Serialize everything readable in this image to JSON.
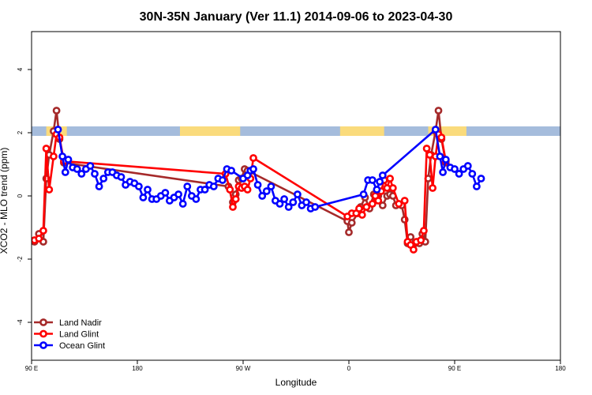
{
  "chart_data": {
    "type": "line",
    "title": "30N-35N January (Ver 11.1)   2014-09-06 to 2023-04-30",
    "xlabel": "Longitude",
    "ylabel": "XCO2 - MLO trend (ppm)",
    "xlim": [
      -90,
      270
    ],
    "ylim": [
      -5.2,
      5.2
    ],
    "x_ticks": [
      {
        "value": -90,
        "label": "90 E"
      },
      {
        "value": -18,
        "label": "180"
      },
      {
        "value": 54,
        "label": "90 W"
      },
      {
        "value": 126,
        "label": "0"
      },
      {
        "value": 198,
        "label": "90 E"
      },
      {
        "value": 270,
        "label": "180"
      }
    ],
    "y_ticks": [
      {
        "value": -4,
        "label": "-4"
      },
      {
        "value": -2,
        "label": "-2"
      },
      {
        "value": 0,
        "label": "0"
      },
      {
        "value": 2,
        "label": "2"
      },
      {
        "value": 4,
        "label": "4"
      }
    ],
    "grid": false,
    "legend_position": "bottom-left",
    "surface_band": {
      "y_range": [
        1.9,
        2.2
      ],
      "land_color": "#fadb7c",
      "ocean_color": "#a5bcdc",
      "land_segments": [
        [
          -80,
          -66
        ],
        [
          11,
          52
        ],
        [
          120,
          150
        ],
        [
          180,
          206
        ]
      ]
    },
    "series": [
      {
        "name": "Land Nadir",
        "color": "#a52a2a",
        "points": [
          [
            -88,
            -1.45
          ],
          [
            -85,
            -1.2
          ],
          [
            -82,
            -1.45
          ],
          [
            -80,
            0.55
          ],
          [
            -78,
            1.3
          ],
          [
            -75,
            2.05
          ],
          [
            -73,
            2.7
          ],
          [
            -71,
            1.8
          ],
          [
            -68,
            1.05
          ],
          [
            44,
            0.3
          ],
          [
            47,
            -0.2
          ],
          [
            49,
            0.05
          ],
          [
            51,
            0.5
          ],
          [
            53,
            0.55
          ],
          [
            55,
            0.85
          ],
          [
            57,
            0.8
          ],
          [
            125,
            -0.8
          ],
          [
            126,
            -1.15
          ],
          [
            128,
            -0.85
          ],
          [
            132,
            -0.55
          ],
          [
            134,
            -0.35
          ],
          [
            137,
            -0.05
          ],
          [
            140,
            -0.4
          ],
          [
            143,
            0.05
          ],
          [
            146,
            0.0
          ],
          [
            149,
            -0.3
          ],
          [
            152,
            0.0
          ],
          [
            154,
            0.05
          ],
          [
            156,
            0.0
          ],
          [
            158,
            -0.3
          ],
          [
            162,
            -0.3
          ],
          [
            164,
            -0.75
          ],
          [
            166,
            -1.5
          ],
          [
            168,
            -1.3
          ],
          [
            171,
            -1.5
          ],
          [
            174,
            -1.5
          ],
          [
            176,
            -1.2
          ],
          [
            178,
            -1.45
          ],
          [
            180,
            0.55
          ],
          [
            182,
            1.3
          ],
          [
            185,
            2.05
          ],
          [
            187,
            2.7
          ],
          [
            189,
            1.8
          ],
          [
            192,
            1.05
          ]
        ]
      },
      {
        "name": "Land Glint",
        "color": "#ff0000",
        "points": [
          [
            -88,
            -1.4
          ],
          [
            -85,
            -1.35
          ],
          [
            -82,
            -1.1
          ],
          [
            -80,
            1.5
          ],
          [
            -78,
            0.2
          ],
          [
            -75,
            1.25
          ],
          [
            -73,
            1.95
          ],
          [
            -71,
            1.85
          ],
          [
            -68,
            1.1
          ],
          [
            42,
            0.7
          ],
          [
            45,
            0.2
          ],
          [
            47,
            -0.35
          ],
          [
            49,
            -0.1
          ],
          [
            51,
            0.3
          ],
          [
            53,
            0.25
          ],
          [
            55,
            0.3
          ],
          [
            57,
            0.2
          ],
          [
            59,
            0.55
          ],
          [
            61,
            1.2
          ],
          [
            125,
            -0.65
          ],
          [
            128,
            -0.55
          ],
          [
            131,
            -0.55
          ],
          [
            133,
            -0.4
          ],
          [
            135,
            -0.6
          ],
          [
            138,
            -0.35
          ],
          [
            142,
            -0.25
          ],
          [
            144,
            0.0
          ],
          [
            146,
            -0.15
          ],
          [
            148,
            0.15
          ],
          [
            150,
            0.5
          ],
          [
            152,
            0.25
          ],
          [
            154,
            0.55
          ],
          [
            156,
            0.25
          ],
          [
            160,
            -0.25
          ],
          [
            164,
            -0.15
          ],
          [
            166,
            -1.45
          ],
          [
            168,
            -1.55
          ],
          [
            170,
            -1.7
          ],
          [
            172,
            -1.45
          ],
          [
            175,
            -1.4
          ],
          [
            177,
            -1.1
          ],
          [
            179,
            1.5
          ],
          [
            181,
            1.3
          ],
          [
            183,
            0.25
          ],
          [
            185,
            1.25
          ],
          [
            187,
            1.95
          ],
          [
            189,
            1.85
          ],
          [
            192,
            1.1
          ]
        ]
      },
      {
        "name": "Ocean Glint",
        "color": "#0000ff",
        "points": [
          [
            -72,
            2.1
          ],
          [
            -69,
            1.25
          ],
          [
            -67,
            0.75
          ],
          [
            -65,
            1.15
          ],
          [
            -62,
            0.9
          ],
          [
            -59,
            0.85
          ],
          [
            -56,
            0.7
          ],
          [
            -53,
            0.85
          ],
          [
            -50,
            0.95
          ],
          [
            -47,
            0.7
          ],
          [
            -44,
            0.3
          ],
          [
            -41,
            0.55
          ],
          [
            -38,
            0.75
          ],
          [
            -35,
            0.75
          ],
          [
            -32,
            0.65
          ],
          [
            -29,
            0.6
          ],
          [
            -26,
            0.35
          ],
          [
            -23,
            0.45
          ],
          [
            -20,
            0.4
          ],
          [
            -17,
            0.3
          ],
          [
            -14,
            -0.05
          ],
          [
            -11,
            0.2
          ],
          [
            -8,
            -0.1
          ],
          [
            -5,
            -0.1
          ],
          [
            -2,
            0.0
          ],
          [
            1,
            0.1
          ],
          [
            4,
            -0.15
          ],
          [
            7,
            -0.05
          ],
          [
            10,
            0.05
          ],
          [
            13,
            -0.25
          ],
          [
            16,
            0.3
          ],
          [
            19,
            0.0
          ],
          [
            22,
            -0.1
          ],
          [
            25,
            0.2
          ],
          [
            28,
            0.2
          ],
          [
            31,
            0.35
          ],
          [
            34,
            0.3
          ],
          [
            37,
            0.55
          ],
          [
            40,
            0.5
          ],
          [
            43,
            0.85
          ],
          [
            46,
            0.8
          ],
          [
            54,
            0.55
          ],
          [
            57,
            0.65
          ],
          [
            59,
            0.8
          ],
          [
            61,
            0.85
          ],
          [
            64,
            0.35
          ],
          [
            67,
            0.0
          ],
          [
            70,
            0.15
          ],
          [
            73,
            0.3
          ],
          [
            76,
            -0.15
          ],
          [
            79,
            -0.25
          ],
          [
            82,
            -0.1
          ],
          [
            85,
            -0.35
          ],
          [
            88,
            -0.2
          ],
          [
            91,
            0.05
          ],
          [
            94,
            -0.3
          ],
          [
            97,
            -0.2
          ],
          [
            100,
            -0.4
          ],
          [
            103,
            -0.35
          ],
          [
            136,
            0.05
          ],
          [
            139,
            0.5
          ],
          [
            142,
            0.5
          ],
          [
            145,
            0.2
          ],
          [
            147,
            0.45
          ],
          [
            149,
            0.65
          ],
          [
            185,
            2.1
          ],
          [
            188,
            1.25
          ],
          [
            190,
            0.75
          ],
          [
            192,
            1.15
          ],
          [
            195,
            0.9
          ],
          [
            198,
            0.85
          ],
          [
            201,
            0.7
          ],
          [
            204,
            0.85
          ],
          [
            207,
            0.95
          ],
          [
            210,
            0.7
          ],
          [
            213,
            0.3
          ],
          [
            216,
            0.55
          ]
        ]
      }
    ]
  }
}
